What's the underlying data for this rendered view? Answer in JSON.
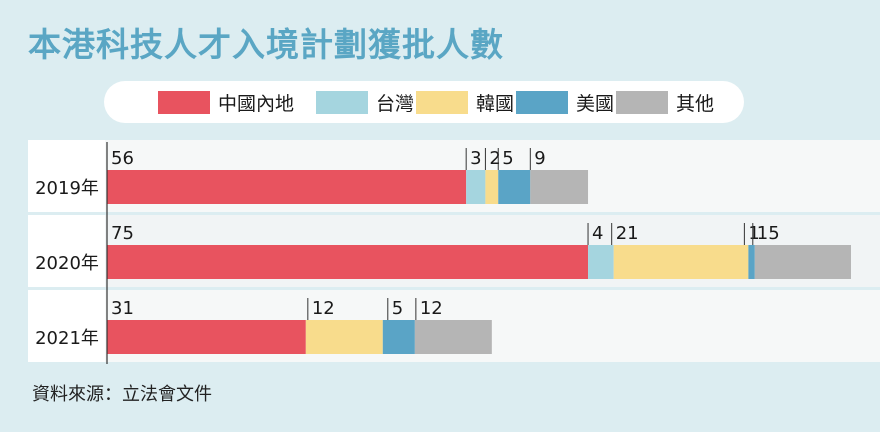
{
  "title": "本港科技人才入境計劃獲批人數",
  "source": "資料來源：立法會文件",
  "colors": {
    "中國內地": "#e8535f",
    "台灣": "#a5d5df",
    "韓國": "#f8dc8c",
    "美國": "#5aa4c6",
    "其他": "#b5b5b5"
  },
  "chart_data": {
    "type": "bar",
    "stacked": true,
    "orientation": "horizontal",
    "categories": [
      "2019年",
      "2020年",
      "2021年"
    ],
    "legend": [
      "中國內地",
      "台灣",
      "韓國",
      "美國",
      "其他"
    ],
    "legend_position": "top",
    "series": [
      {
        "name": "中國內地",
        "values": [
          56,
          75,
          31
        ]
      },
      {
        "name": "台灣",
        "values": [
          3,
          4,
          0
        ]
      },
      {
        "name": "韓國",
        "values": [
          2,
          21,
          12
        ]
      },
      {
        "name": "美國",
        "values": [
          5,
          1,
          5
        ]
      },
      {
        "name": "其他",
        "values": [
          9,
          15,
          12
        ]
      }
    ],
    "xlim": [
      0,
      116
    ]
  }
}
